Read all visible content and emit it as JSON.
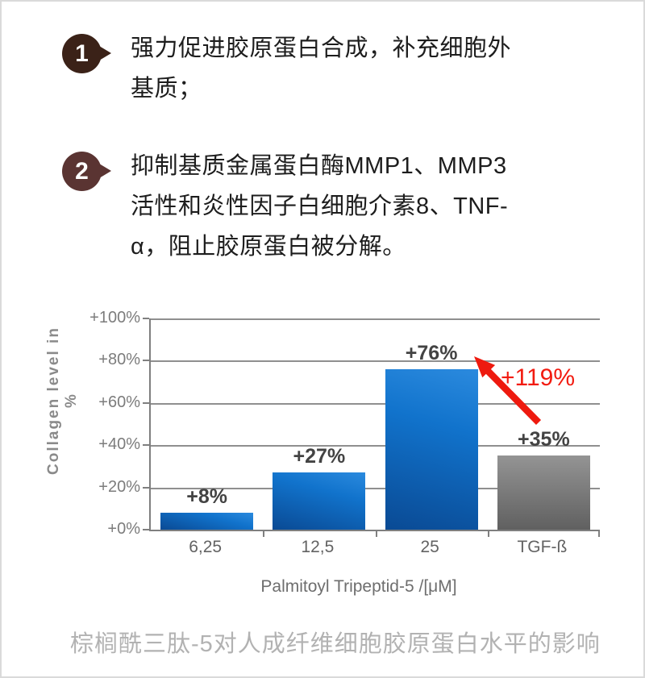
{
  "points": [
    {
      "number": "1",
      "badge_color": "#3b2218",
      "lines": [
        "强力促进胶原蛋白合成，补充细胞外",
        "基质；"
      ]
    },
    {
      "number": "2",
      "badge_color": "#5a3432",
      "lines": [
        "抑制基质金属蛋白酶MMP1、MMP3",
        "活性和炎性因子白细胞介素8、TNF-",
        "α，阻止胶原蛋白被分解。"
      ]
    }
  ],
  "chart_data": {
    "type": "bar",
    "title": "",
    "ylabel": "Collagen level in %",
    "xlabel": "Palmitoyl Tripeptid-5 /[μM]",
    "categories": [
      "6,25",
      "12,5",
      "25",
      "TGF-ß"
    ],
    "values": [
      8,
      27,
      76,
      35
    ],
    "bar_labels": [
      "+8%",
      "+27%",
      "+76%",
      "+35%"
    ],
    "bar_colors": [
      "blue",
      "blue",
      "blue",
      "gray"
    ],
    "ylim": [
      0,
      100
    ],
    "yticks": [
      {
        "value": 0,
        "label": "+0%"
      },
      {
        "value": 20,
        "label": "+20%"
      },
      {
        "value": 40,
        "label": "+40%"
      },
      {
        "value": 60,
        "label": "+60%"
      },
      {
        "value": 80,
        "label": "+80%"
      },
      {
        "value": 100,
        "label": "+100%"
      }
    ],
    "grid": true,
    "legend": false,
    "annotation": {
      "text": "+119%",
      "color": "#f21b10"
    },
    "colors": {
      "bar_blue_top": "#2b8ade",
      "bar_blue_bottom": "#0a4a94",
      "bar_gray_top": "#949494",
      "bar_gray_bottom": "#606060",
      "arrow_red": "#ee1a0f",
      "axis_gray": "#7f7f7f"
    }
  },
  "caption": "棕榈酰三肽-5对人成纤维细胞胶原蛋白水平的影响"
}
